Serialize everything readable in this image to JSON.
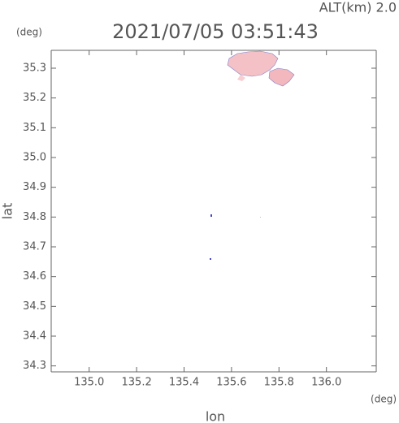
{
  "chart_data": {
    "type": "map",
    "title": "2021/07/05 03:51:43",
    "altitude_label": "ALT(km) 2.0",
    "y_unit": "(deg)",
    "x_unit": "(deg)",
    "x_label": "lon",
    "y_label": "lat",
    "xlim": [
      134.84,
      136.21
    ],
    "ylim": [
      34.28,
      35.36
    ],
    "xticks": [
      {
        "value": 135.0,
        "label": "135.0"
      },
      135.2,
      135.4,
      135.6,
      135.8,
      {
        "value": 136.0,
        "label": "136.0"
      }
    ],
    "yticks": [
      34.3,
      34.4,
      34.5,
      34.6,
      34.7,
      34.8,
      34.9,
      {
        "value": 35.0,
        "label": "35.0"
      },
      35.1,
      35.2,
      35.3
    ]
  }
}
